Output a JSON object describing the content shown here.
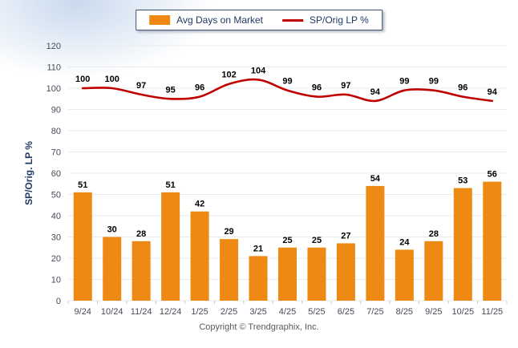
{
  "legend": {
    "bar_label": "Avg Days on Market",
    "line_label": "SP/Orig LP %"
  },
  "footer": {
    "copyright": "Copyright © Trendgraphix, Inc."
  },
  "colors": {
    "bar": "#EE8A13",
    "line": "#C00000",
    "legend_border": "#44546A",
    "axis_text": "#474B57",
    "axis_title_text": "#1F3864",
    "grid": "#EBEBEB",
    "data_label": "#000000"
  },
  "chart_data": {
    "type": "bar",
    "categories": [
      "9/24",
      "10/24",
      "11/24",
      "12/24",
      "1/25",
      "2/25",
      "3/25",
      "4/25",
      "5/25",
      "6/25",
      "7/25",
      "8/25",
      "9/25",
      "10/25",
      "11/25"
    ],
    "series": [
      {
        "name": "Avg Days on Market",
        "type": "bar",
        "color": "#EE8A13",
        "values": [
          51,
          30,
          28,
          51,
          42,
          29,
          21,
          25,
          25,
          27,
          54,
          24,
          28,
          53,
          56
        ]
      },
      {
        "name": "SP/Orig LP %",
        "type": "line",
        "color": "#C00000",
        "values": [
          100,
          100,
          97,
          95,
          96,
          102,
          104,
          99,
          96,
          97,
          94,
          99,
          99,
          96,
          94
        ]
      }
    ],
    "title": "",
    "xlabel": "",
    "ylabel": "SP/Orig. LP %",
    "ylim": [
      0,
      120
    ],
    "ytick_step": 10,
    "grid": true,
    "legend_position": "top"
  }
}
